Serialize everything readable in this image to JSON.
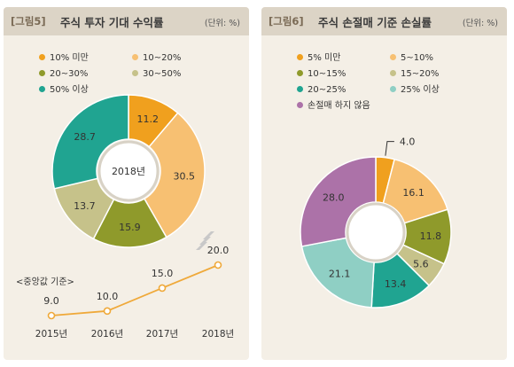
{
  "colors": {
    "orange": "#f0a01e",
    "light_orange": "#f7c072",
    "olive": "#8f9a2b",
    "khaki": "#c6c28a",
    "teal": "#20a491",
    "light_teal": "#8fcfc4",
    "purple": "#ac72a8",
    "line": "#efa93a"
  },
  "fig5": {
    "num": "[그림5]",
    "title": "주식 투자 기대 수익률",
    "unit": "(단위: %)",
    "center_label": "2018년",
    "note": "<중앙값 기준>",
    "legend": [
      {
        "label": "10% 미만",
        "color": "#f0a01e"
      },
      {
        "label": "10~20%",
        "color": "#f7c072"
      },
      {
        "label": "20~30%",
        "color": "#8f9a2b"
      },
      {
        "label": "30~50%",
        "color": "#c6c28a"
      },
      {
        "label": "50% 이상",
        "color": "#20a491"
      }
    ]
  },
  "fig6": {
    "num": "[그림6]",
    "title": "주식 손절매 기준 손실률",
    "unit": "(단위: %)",
    "legend": [
      {
        "label": "5% 미만",
        "color": "#f0a01e"
      },
      {
        "label": "5~10%",
        "color": "#f7c072"
      },
      {
        "label": "10~15%",
        "color": "#8f9a2b"
      },
      {
        "label": "15~20%",
        "color": "#c6c28a"
      },
      {
        "label": "20~25%",
        "color": "#20a491"
      },
      {
        "label": "25% 이상",
        "color": "#8fcfc4"
      },
      {
        "label": "손절매 하지 않음",
        "color": "#ac72a8"
      }
    ]
  },
  "chart_data": [
    {
      "type": "pie",
      "title": "주식 투자 기대 수익률",
      "categories": [
        "10% 미만",
        "10~20%",
        "20~30%",
        "30~50%",
        "50% 이상"
      ],
      "values": [
        11.2,
        30.5,
        15.9,
        13.7,
        28.7
      ],
      "colors": [
        "#f0a01e",
        "#f7c072",
        "#8f9a2b",
        "#c6c28a",
        "#20a491"
      ],
      "donut": true,
      "center_label": "2018년"
    },
    {
      "type": "line",
      "title": "<중앙값 기준>",
      "categories": [
        "2015년",
        "2016년",
        "2017년",
        "2018년"
      ],
      "values": [
        9.0,
        10.0,
        15.0,
        20.0
      ],
      "ylim": [
        9.0,
        20.0
      ],
      "color": "#efa93a"
    },
    {
      "type": "pie",
      "title": "주식 손절매 기준 손실률",
      "categories": [
        "5% 미만",
        "5~10%",
        "10~15%",
        "15~20%",
        "20~25%",
        "25% 이상",
        "손절매 하지 않음"
      ],
      "values": [
        4.0,
        16.1,
        11.8,
        5.6,
        13.4,
        21.1,
        28.0
      ],
      "colors": [
        "#f0a01e",
        "#f7c072",
        "#8f9a2b",
        "#c6c28a",
        "#20a491",
        "#8fcfc4",
        "#ac72a8"
      ],
      "donut": true
    }
  ]
}
